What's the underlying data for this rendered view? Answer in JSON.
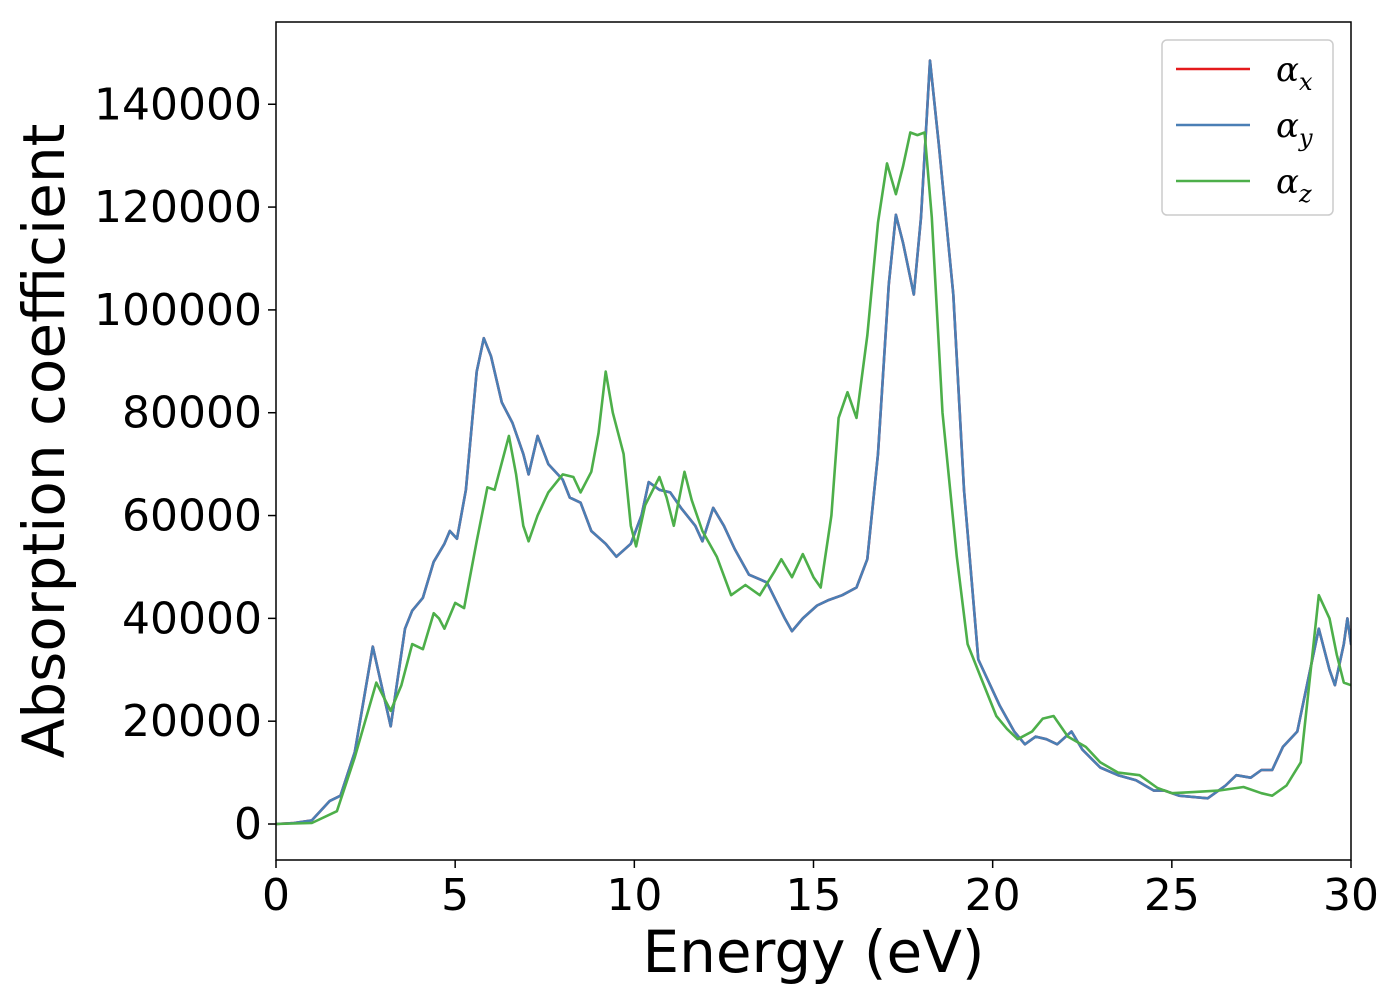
{
  "chart_data": {
    "type": "line",
    "title": "",
    "xlabel": "Energy (eV)",
    "ylabel": "Absorption coefficient",
    "xlim": [
      0,
      30
    ],
    "ylim": [
      -7000,
      156000
    ],
    "xticks": [
      0,
      5,
      10,
      15,
      20,
      25,
      30
    ],
    "yticks": [
      0,
      20000,
      40000,
      60000,
      80000,
      100000,
      120000,
      140000
    ],
    "grid": false,
    "legend": {
      "placement": "top-right"
    },
    "series": [
      {
        "name": "α",
        "subscript": "x",
        "color": "#e41a1c",
        "points": [
          [
            0,
            0
          ],
          [
            0.5,
            200
          ],
          [
            1.0,
            700
          ],
          [
            1.5,
            4500
          ],
          [
            1.8,
            5500
          ],
          [
            2.2,
            14000
          ],
          [
            2.7,
            34500
          ],
          [
            3.2,
            19000
          ],
          [
            3.6,
            38000
          ],
          [
            3.8,
            41500
          ],
          [
            4.1,
            44000
          ],
          [
            4.4,
            51000
          ],
          [
            4.7,
            54500
          ],
          [
            4.85,
            57000
          ],
          [
            5.05,
            55500
          ],
          [
            5.3,
            65000
          ],
          [
            5.6,
            88000
          ],
          [
            5.8,
            94500
          ],
          [
            6.0,
            91000
          ],
          [
            6.3,
            82000
          ],
          [
            6.6,
            78000
          ],
          [
            6.9,
            72000
          ],
          [
            7.05,
            68000
          ],
          [
            7.3,
            75500
          ],
          [
            7.6,
            70000
          ],
          [
            8.0,
            67000
          ],
          [
            8.2,
            63500
          ],
          [
            8.5,
            62500
          ],
          [
            8.8,
            57000
          ],
          [
            9.2,
            54500
          ],
          [
            9.5,
            52000
          ],
          [
            9.9,
            54500
          ],
          [
            10.2,
            60000
          ],
          [
            10.4,
            66500
          ],
          [
            10.7,
            65000
          ],
          [
            11.0,
            64500
          ],
          [
            11.3,
            61500
          ],
          [
            11.7,
            58000
          ],
          [
            11.9,
            55000
          ],
          [
            12.2,
            61500
          ],
          [
            12.5,
            58000
          ],
          [
            12.8,
            53500
          ],
          [
            13.2,
            48500
          ],
          [
            13.7,
            47000
          ],
          [
            14.2,
            40000
          ],
          [
            14.4,
            37500
          ],
          [
            14.7,
            40000
          ],
          [
            15.1,
            42500
          ],
          [
            15.4,
            43500
          ],
          [
            15.8,
            44500
          ],
          [
            16.2,
            46000
          ],
          [
            16.5,
            51500
          ],
          [
            16.8,
            72000
          ],
          [
            17.1,
            105000
          ],
          [
            17.3,
            118500
          ],
          [
            17.5,
            113000
          ],
          [
            17.8,
            103000
          ],
          [
            18.0,
            118000
          ],
          [
            18.25,
            148500
          ],
          [
            18.5,
            132000
          ],
          [
            18.9,
            103000
          ],
          [
            19.2,
            65000
          ],
          [
            19.6,
            32000
          ],
          [
            20.2,
            23000
          ],
          [
            20.6,
            18000
          ],
          [
            20.9,
            15500
          ],
          [
            21.2,
            17000
          ],
          [
            21.5,
            16500
          ],
          [
            21.8,
            15500
          ],
          [
            22.2,
            18000
          ],
          [
            22.5,
            14500
          ],
          [
            23.0,
            11000
          ],
          [
            23.5,
            9500
          ],
          [
            24.0,
            8500
          ],
          [
            24.5,
            6500
          ],
          [
            24.8,
            6500
          ],
          [
            25.2,
            5500
          ],
          [
            26.0,
            5000
          ],
          [
            26.5,
            7500
          ],
          [
            26.8,
            9500
          ],
          [
            27.2,
            9000
          ],
          [
            27.5,
            10500
          ],
          [
            27.8,
            10500
          ],
          [
            28.1,
            15000
          ],
          [
            28.5,
            18000
          ],
          [
            28.8,
            28000
          ],
          [
            29.1,
            38000
          ],
          [
            29.4,
            30000
          ],
          [
            29.55,
            27000
          ],
          [
            29.8,
            35000
          ],
          [
            29.9,
            40000
          ],
          [
            30,
            35000
          ]
        ]
      },
      {
        "name": "α",
        "subscript": "y",
        "color": "#4a7fb5",
        "points": [
          [
            0,
            0
          ],
          [
            0.5,
            200
          ],
          [
            1.0,
            700
          ],
          [
            1.5,
            4500
          ],
          [
            1.8,
            5500
          ],
          [
            2.2,
            14000
          ],
          [
            2.7,
            34500
          ],
          [
            3.2,
            19000
          ],
          [
            3.6,
            38000
          ],
          [
            3.8,
            41500
          ],
          [
            4.1,
            44000
          ],
          [
            4.4,
            51000
          ],
          [
            4.7,
            54500
          ],
          [
            4.85,
            57000
          ],
          [
            5.05,
            55500
          ],
          [
            5.3,
            65000
          ],
          [
            5.6,
            88000
          ],
          [
            5.8,
            94500
          ],
          [
            6.0,
            91000
          ],
          [
            6.3,
            82000
          ],
          [
            6.6,
            78000
          ],
          [
            6.9,
            72000
          ],
          [
            7.05,
            68000
          ],
          [
            7.3,
            75500
          ],
          [
            7.6,
            70000
          ],
          [
            8.0,
            67000
          ],
          [
            8.2,
            63500
          ],
          [
            8.5,
            62500
          ],
          [
            8.8,
            57000
          ],
          [
            9.2,
            54500
          ],
          [
            9.5,
            52000
          ],
          [
            9.9,
            54500
          ],
          [
            10.2,
            60000
          ],
          [
            10.4,
            66500
          ],
          [
            10.7,
            65000
          ],
          [
            11.0,
            64500
          ],
          [
            11.3,
            61500
          ],
          [
            11.7,
            58000
          ],
          [
            11.9,
            55000
          ],
          [
            12.2,
            61500
          ],
          [
            12.5,
            58000
          ],
          [
            12.8,
            53500
          ],
          [
            13.2,
            48500
          ],
          [
            13.7,
            47000
          ],
          [
            14.2,
            40000
          ],
          [
            14.4,
            37500
          ],
          [
            14.7,
            40000
          ],
          [
            15.1,
            42500
          ],
          [
            15.4,
            43500
          ],
          [
            15.8,
            44500
          ],
          [
            16.2,
            46000
          ],
          [
            16.5,
            51500
          ],
          [
            16.8,
            72000
          ],
          [
            17.1,
            105000
          ],
          [
            17.3,
            118500
          ],
          [
            17.5,
            113000
          ],
          [
            17.8,
            103000
          ],
          [
            18.0,
            118000
          ],
          [
            18.25,
            148500
          ],
          [
            18.5,
            132000
          ],
          [
            18.9,
            103000
          ],
          [
            19.2,
            65000
          ],
          [
            19.6,
            32000
          ],
          [
            20.2,
            23000
          ],
          [
            20.6,
            18000
          ],
          [
            20.9,
            15500
          ],
          [
            21.2,
            17000
          ],
          [
            21.5,
            16500
          ],
          [
            21.8,
            15500
          ],
          [
            22.2,
            18000
          ],
          [
            22.5,
            14500
          ],
          [
            23.0,
            11000
          ],
          [
            23.5,
            9500
          ],
          [
            24.0,
            8500
          ],
          [
            24.5,
            6500
          ],
          [
            24.8,
            6500
          ],
          [
            25.2,
            5500
          ],
          [
            26.0,
            5000
          ],
          [
            26.5,
            7500
          ],
          [
            26.8,
            9500
          ],
          [
            27.2,
            9000
          ],
          [
            27.5,
            10500
          ],
          [
            27.8,
            10500
          ],
          [
            28.1,
            15000
          ],
          [
            28.5,
            18000
          ],
          [
            28.8,
            28000
          ],
          [
            29.1,
            38000
          ],
          [
            29.4,
            30000
          ],
          [
            29.55,
            27000
          ],
          [
            29.8,
            35000
          ],
          [
            29.9,
            40000
          ],
          [
            30,
            35000
          ]
        ]
      },
      {
        "name": "α",
        "subscript": "z",
        "color": "#4daf4a",
        "points": [
          [
            0,
            0
          ],
          [
            1.0,
            200
          ],
          [
            1.7,
            2500
          ],
          [
            2.2,
            13000
          ],
          [
            2.8,
            27500
          ],
          [
            3.2,
            22000
          ],
          [
            3.5,
            27000
          ],
          [
            3.8,
            35000
          ],
          [
            4.1,
            34000
          ],
          [
            4.4,
            41000
          ],
          [
            4.55,
            40000
          ],
          [
            4.7,
            38000
          ],
          [
            5.0,
            43000
          ],
          [
            5.25,
            42000
          ],
          [
            5.6,
            55000
          ],
          [
            5.9,
            65500
          ],
          [
            6.1,
            65000
          ],
          [
            6.5,
            75500
          ],
          [
            6.7,
            68000
          ],
          [
            6.9,
            58000
          ],
          [
            7.05,
            55000
          ],
          [
            7.3,
            60000
          ],
          [
            7.6,
            64500
          ],
          [
            8.0,
            68000
          ],
          [
            8.3,
            67500
          ],
          [
            8.5,
            64500
          ],
          [
            8.8,
            68500
          ],
          [
            9.0,
            76000
          ],
          [
            9.2,
            88000
          ],
          [
            9.4,
            80000
          ],
          [
            9.7,
            72000
          ],
          [
            9.9,
            58000
          ],
          [
            10.05,
            54000
          ],
          [
            10.3,
            62000
          ],
          [
            10.7,
            67500
          ],
          [
            10.9,
            63500
          ],
          [
            11.1,
            58000
          ],
          [
            11.4,
            68500
          ],
          [
            11.6,
            63000
          ],
          [
            11.9,
            57000
          ],
          [
            12.3,
            52000
          ],
          [
            12.7,
            44500
          ],
          [
            13.1,
            46500
          ],
          [
            13.5,
            44500
          ],
          [
            13.9,
            49000
          ],
          [
            14.1,
            51500
          ],
          [
            14.4,
            48000
          ],
          [
            14.7,
            52500
          ],
          [
            15.0,
            48000
          ],
          [
            15.2,
            46000
          ],
          [
            15.5,
            60000
          ],
          [
            15.7,
            79000
          ],
          [
            15.95,
            84000
          ],
          [
            16.2,
            79000
          ],
          [
            16.5,
            95000
          ],
          [
            16.8,
            117000
          ],
          [
            17.05,
            128500
          ],
          [
            17.3,
            122500
          ],
          [
            17.5,
            128000
          ],
          [
            17.7,
            134500
          ],
          [
            17.9,
            134000
          ],
          [
            18.1,
            134500
          ],
          [
            18.3,
            118000
          ],
          [
            18.6,
            80000
          ],
          [
            19.0,
            52000
          ],
          [
            19.3,
            35000
          ],
          [
            19.7,
            28000
          ],
          [
            20.1,
            21000
          ],
          [
            20.4,
            18500
          ],
          [
            20.7,
            16500
          ],
          [
            21.1,
            18000
          ],
          [
            21.4,
            20500
          ],
          [
            21.7,
            21000
          ],
          [
            22.1,
            17000
          ],
          [
            22.6,
            15000
          ],
          [
            23.0,
            12000
          ],
          [
            23.5,
            10000
          ],
          [
            24.1,
            9500
          ],
          [
            24.6,
            7000
          ],
          [
            25.0,
            6000
          ],
          [
            25.6,
            6200
          ],
          [
            26.3,
            6500
          ],
          [
            27.0,
            7200
          ],
          [
            27.5,
            6000
          ],
          [
            27.8,
            5500
          ],
          [
            28.2,
            7500
          ],
          [
            28.6,
            12000
          ],
          [
            28.8,
            25000
          ],
          [
            29.1,
            44500
          ],
          [
            29.4,
            40000
          ],
          [
            29.6,
            33000
          ],
          [
            29.8,
            27500
          ],
          [
            30,
            27000
          ]
        ]
      }
    ]
  }
}
